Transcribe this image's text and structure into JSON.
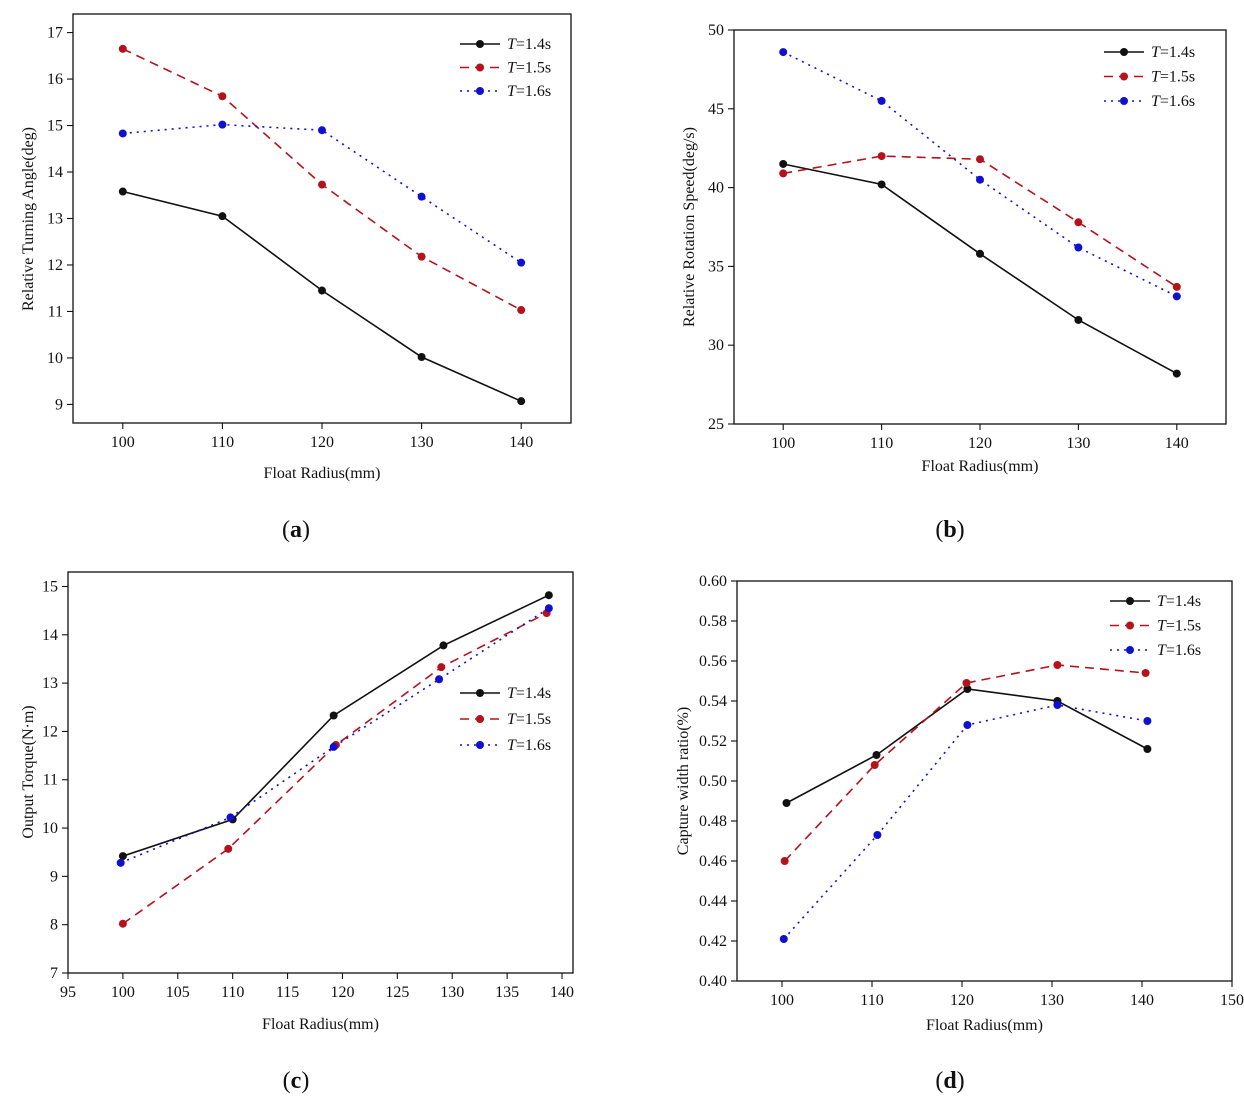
{
  "series_styles": [
    {
      "color": "#111111",
      "dash": "none",
      "marker_r": 4
    },
    {
      "color": "#b5121b",
      "dash": "dashed",
      "marker_r": 4
    },
    {
      "color": "#1010d0",
      "dash": "dotted",
      "marker_r": 4
    }
  ],
  "chart_data": [
    {
      "panel_label": "a",
      "type": "line",
      "xlabel": "Float Radius(mm)",
      "ylabel": "Relative Turning Angle(deg)",
      "xlim": [
        95,
        145
      ],
      "ylim": [
        8.6,
        17.4
      ],
      "xticks": [
        100,
        110,
        120,
        130,
        140
      ],
      "yticks": [
        9,
        10,
        11,
        12,
        13,
        14,
        15,
        16,
        17
      ],
      "legend_position": "top-right",
      "series": [
        {
          "name_italic": "T",
          "name_rest": "=1.4s",
          "x": [
            100,
            110,
            120,
            130,
            140
          ],
          "y": [
            13.58,
            13.05,
            11.45,
            10.02,
            9.07
          ]
        },
        {
          "name_italic": "T",
          "name_rest": "=1.5s",
          "x": [
            100,
            110,
            120,
            130,
            140
          ],
          "y": [
            16.65,
            15.63,
            13.73,
            12.18,
            11.03
          ]
        },
        {
          "name_italic": "T",
          "name_rest": "=1.6s",
          "x": [
            100,
            110,
            120,
            130,
            140
          ],
          "y": [
            14.83,
            15.02,
            14.9,
            13.47,
            12.05
          ]
        }
      ]
    },
    {
      "panel_label": "b",
      "type": "line",
      "xlabel": "Float Radius(mm)",
      "ylabel": "Relative Rotation Speed(deg/s)",
      "xlim": [
        95,
        145
      ],
      "ylim": [
        25,
        50
      ],
      "xticks": [
        100,
        110,
        120,
        130,
        140
      ],
      "yticks": [
        25,
        30,
        35,
        40,
        45,
        50
      ],
      "legend_position": "top-right",
      "series": [
        {
          "name_italic": "T",
          "name_rest": "=1.4s",
          "x": [
            100,
            110,
            120,
            130,
            140
          ],
          "y": [
            41.5,
            40.2,
            35.8,
            31.6,
            28.2
          ]
        },
        {
          "name_italic": "T",
          "name_rest": "=1.5s",
          "x": [
            100,
            110,
            120,
            130,
            140
          ],
          "y": [
            40.9,
            42.0,
            41.8,
            37.8,
            33.7
          ]
        },
        {
          "name_italic": "T",
          "name_rest": "=1.6s",
          "x": [
            100,
            110,
            120,
            130,
            140
          ],
          "y": [
            48.6,
            45.5,
            40.5,
            36.2,
            33.1
          ]
        }
      ]
    },
    {
      "panel_label": "c",
      "type": "line",
      "xlabel": "Float Radius(mm)",
      "ylabel": "Output Torque(N·m)",
      "xlim": [
        95,
        141
      ],
      "ylim": [
        7,
        15.3
      ],
      "xticks": [
        95,
        100,
        105,
        110,
        115,
        120,
        125,
        130,
        135,
        140
      ],
      "yticks": [
        7,
        8,
        9,
        10,
        11,
        12,
        13,
        14,
        15
      ],
      "legend_position": "center-right",
      "series": [
        {
          "name_italic": "T",
          "name_rest": "=1.4s",
          "x": [
            100,
            110,
            119.2,
            129.2,
            138.8
          ],
          "y": [
            9.42,
            10.18,
            12.33,
            13.78,
            14.82
          ]
        },
        {
          "name_italic": "T",
          "name_rest": "=1.5s",
          "x": [
            100,
            109.6,
            119.4,
            129,
            138.6
          ],
          "y": [
            8.02,
            9.57,
            11.72,
            13.33,
            14.45
          ]
        },
        {
          "name_italic": "T",
          "name_rest": "=1.6s",
          "x": [
            99.8,
            109.8,
            119.2,
            128.8,
            138.8
          ],
          "y": [
            9.28,
            10.22,
            11.68,
            13.08,
            14.55
          ]
        }
      ]
    },
    {
      "panel_label": "d",
      "type": "line",
      "xlabel": "Float Radius(mm)",
      "ylabel": "Capture width ratio(%)",
      "xlim": [
        95,
        150
      ],
      "ylim": [
        0.4,
        0.6
      ],
      "xticks": [
        100,
        110,
        120,
        130,
        140,
        150
      ],
      "yticks": [
        "0.40",
        "0.42",
        "0.44",
        "0.46",
        "0.48",
        "0.50",
        "0.52",
        "0.54",
        "0.56",
        "0.58",
        "0.60"
      ],
      "legend_position": "top-right",
      "series": [
        {
          "name_italic": "T",
          "name_rest": "=1.4s",
          "x": [
            100.5,
            110.5,
            120.6,
            130.6,
            140.6
          ],
          "y": [
            0.489,
            0.513,
            0.546,
            0.54,
            0.516
          ]
        },
        {
          "name_italic": "T",
          "name_rest": "=1.5s",
          "x": [
            100.3,
            110.3,
            120.5,
            130.6,
            140.4
          ],
          "y": [
            0.46,
            0.508,
            0.549,
            0.558,
            0.554
          ]
        },
        {
          "name_italic": "T",
          "name_rest": "=1.6s",
          "x": [
            100.2,
            110.6,
            120.6,
            130.6,
            140.6
          ],
          "y": [
            0.421,
            0.473,
            0.528,
            0.538,
            0.53
          ]
        }
      ]
    }
  ]
}
